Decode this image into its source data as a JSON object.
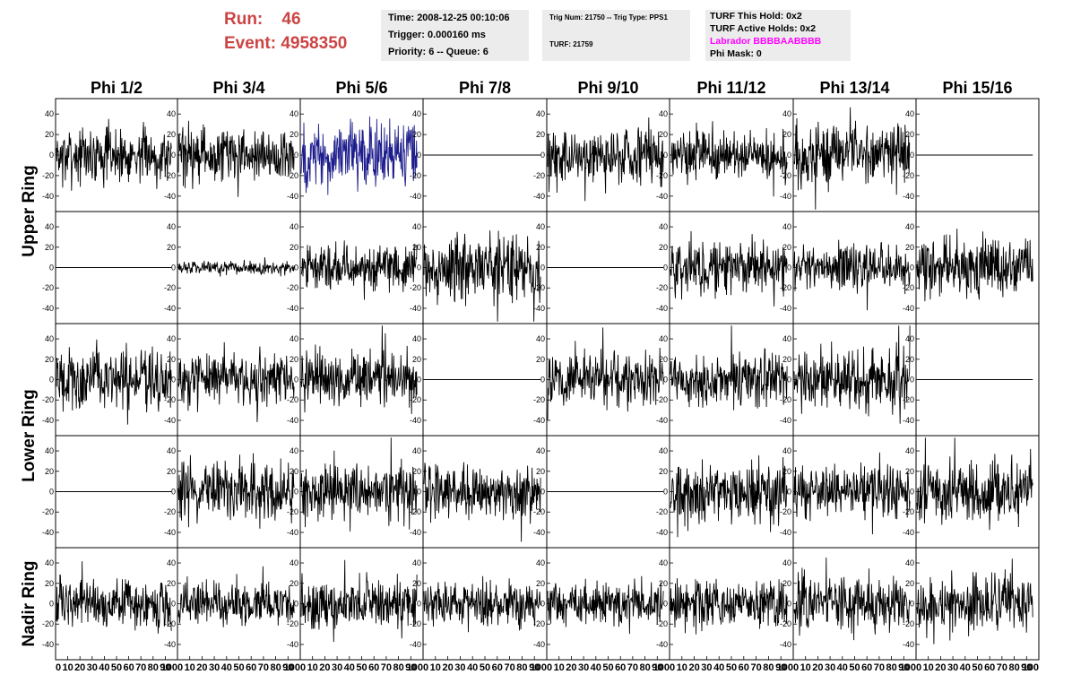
{
  "header": {
    "run_label": "Run:",
    "run_value": "46",
    "event_label": "Event:",
    "event_value": "4958350",
    "time": "Time: 2008-12-25 00:10:06",
    "trigger": "Trigger: 0.000160 ms",
    "priority": "Priority: 6 -- Queue: 6",
    "trig_num": "Trig Num: 21750 -- Trig Type: PPS1",
    "turf": "TURF: 21759",
    "turf_hold": "TURF This Hold: 0x2",
    "turf_active": "TURF Active Holds: 0x2",
    "labrador": "Labrador BBBBAABBBB",
    "phi_mask": "Phi Mask: 0"
  },
  "colors": {
    "header_red": "#cc4444",
    "labrador_magenta": "#ff00ff",
    "trace_black": "#000000",
    "trace_highlight": "#1c1c8c",
    "panel_bg": "#ececec"
  },
  "chart_data": {
    "type": "line",
    "columns": [
      "Phi 1/2",
      "Phi 3/4",
      "Phi 5/6",
      "Phi 7/8",
      "Phi 9/10",
      "Phi 11/12",
      "Phi 13/14",
      "Phi 15/16"
    ],
    "rows": [
      "Upper Ring",
      "Upper Ring",
      "Lower Ring",
      "Lower Ring",
      "Nadir Ring"
    ],
    "row_labels": [
      {
        "text": "Upper Ring",
        "rows": [
          0,
          1
        ]
      },
      {
        "text": "Lower Ring",
        "rows": [
          2,
          3
        ]
      },
      {
        "text": "Nadir Ring",
        "rows": [
          4
        ]
      }
    ],
    "xlim": [
      0,
      100
    ],
    "ylim": [
      -55,
      55
    ],
    "yticks": [
      -40,
      -20,
      0,
      20,
      40
    ],
    "ytick_labels": [
      "-40",
      "-20",
      "0",
      "20",
      "40"
    ],
    "xtick_labels": [
      "0",
      "10",
      "20",
      "30",
      "40",
      "50",
      "60",
      "70",
      "80",
      "90",
      "100"
    ],
    "x_range_samples": [
      0,
      95
    ],
    "trace_style": [
      [
        "n",
        "n",
        "b",
        "f",
        "n",
        "n",
        "n",
        "f"
      ],
      [
        "f",
        "s",
        "n",
        "n",
        "f",
        "n",
        "n",
        "n"
      ],
      [
        "n",
        "n",
        "n",
        "f",
        "n",
        "n",
        "n",
        "f"
      ],
      [
        "f",
        "n",
        "n",
        "n",
        "f",
        "n",
        "n",
        "n"
      ],
      [
        "n",
        "n",
        "n",
        "n",
        "n",
        "n",
        "n",
        "n"
      ]
    ],
    "trace_amplitude": [
      [
        18,
        18,
        22,
        0,
        20,
        16,
        20,
        0
      ],
      [
        0,
        4,
        15,
        22,
        0,
        18,
        16,
        18
      ],
      [
        20,
        18,
        18,
        0,
        18,
        18,
        20,
        0
      ],
      [
        0,
        20,
        18,
        18,
        0,
        20,
        16,
        20
      ],
      [
        16,
        14,
        16,
        16,
        14,
        16,
        18,
        18
      ]
    ]
  }
}
